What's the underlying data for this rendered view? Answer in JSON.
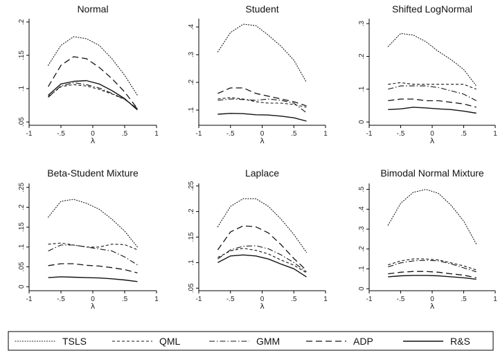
{
  "chart_data": {
    "type": "line",
    "x_label": "λ",
    "x_ticks": [
      "-1",
      "-.5",
      "0",
      ".5",
      "1"
    ],
    "x_tick_values": [
      -1,
      -0.5,
      0,
      0.5,
      1
    ],
    "x_range": [
      -1,
      1
    ],
    "grid": false,
    "legend": {
      "placement": "bottom",
      "entries": [
        {
          "name": "TSLS",
          "style": "dotted"
        },
        {
          "name": "QML",
          "style": "short-dash"
        },
        {
          "name": "GMM",
          "style": "dash-dot"
        },
        {
          "name": "ADP",
          "style": "long-dash"
        },
        {
          "name": "R&S",
          "style": "solid"
        }
      ]
    },
    "panels": [
      {
        "title": "Normal",
        "y_ticks": [
          ".05",
          ".1",
          ".15",
          ".2"
        ],
        "y_tick_values": [
          0.05,
          0.1,
          0.15,
          0.2
        ],
        "y_range": [
          0.045,
          0.205
        ],
        "x": [
          -0.7,
          -0.5,
          -0.3,
          -0.1,
          0.1,
          0.3,
          0.5,
          0.7
        ],
        "series": [
          {
            "name": "TSLS",
            "values": [
              0.135,
              0.165,
              0.178,
              0.175,
              0.165,
              0.145,
              0.12,
              0.09
            ]
          },
          {
            "name": "QML",
            "values": [
              0.088,
              0.103,
              0.106,
              0.104,
              0.099,
              0.092,
              0.084,
              0.07
            ]
          },
          {
            "name": "GMM",
            "values": [
              0.087,
              0.104,
              0.109,
              0.106,
              0.101,
              0.093,
              0.084,
              0.07
            ]
          },
          {
            "name": "ADP",
            "values": [
              0.103,
              0.135,
              0.148,
              0.145,
              0.132,
              0.115,
              0.095,
              0.07
            ]
          },
          {
            "name": "R&S",
            "values": [
              0.09,
              0.107,
              0.111,
              0.112,
              0.107,
              0.097,
              0.085,
              0.068
            ]
          }
        ]
      },
      {
        "title": "Student",
        "y_ticks": [
          ".1",
          ".2",
          ".3",
          ".4"
        ],
        "y_tick_values": [
          0.1,
          0.2,
          0.3,
          0.4
        ],
        "y_range": [
          0.045,
          0.43
        ],
        "x": [
          -0.7,
          -0.5,
          -0.3,
          -0.1,
          0.1,
          0.3,
          0.5,
          0.7
        ],
        "series": [
          {
            "name": "TSLS",
            "values": [
              0.31,
              0.38,
              0.41,
              0.405,
              0.37,
              0.33,
              0.28,
              0.2
            ]
          },
          {
            "name": "QML",
            "values": [
              0.14,
              0.145,
              0.14,
              0.13,
              0.125,
              0.125,
              0.12,
              0.11
            ]
          },
          {
            "name": "GMM",
            "values": [
              0.135,
              0.14,
              0.138,
              0.135,
              0.14,
              0.135,
              0.125,
              0.09
            ]
          },
          {
            "name": "ADP",
            "values": [
              0.16,
              0.18,
              0.18,
              0.16,
              0.15,
              0.14,
              0.13,
              0.115
            ]
          },
          {
            "name": "R&S",
            "values": [
              0.085,
              0.088,
              0.087,
              0.083,
              0.082,
              0.078,
              0.072,
              0.06
            ]
          }
        ]
      },
      {
        "title": "Shifted LogNormal",
        "y_ticks": [
          "0",
          ".1",
          ".2",
          ".3"
        ],
        "y_tick_values": [
          0,
          0.1,
          0.2,
          0.3
        ],
        "y_range": [
          -0.01,
          0.315
        ],
        "x": [
          -0.7,
          -0.5,
          -0.3,
          -0.1,
          0.1,
          0.3,
          0.5,
          0.7
        ],
        "series": [
          {
            "name": "TSLS",
            "values": [
              0.23,
              0.27,
              0.265,
              0.245,
              0.215,
              0.19,
              0.16,
              0.11
            ]
          },
          {
            "name": "QML",
            "values": [
              0.115,
              0.12,
              0.115,
              0.115,
              0.115,
              0.115,
              0.115,
              0.1
            ]
          },
          {
            "name": "GMM",
            "values": [
              0.1,
              0.11,
              0.11,
              0.11,
              0.105,
              0.095,
              0.085,
              0.065
            ]
          },
          {
            "name": "ADP",
            "values": [
              0.065,
              0.07,
              0.07,
              0.065,
              0.065,
              0.06,
              0.055,
              0.045
            ]
          },
          {
            "name": "R&S",
            "values": [
              0.038,
              0.04,
              0.045,
              0.043,
              0.04,
              0.038,
              0.033,
              0.027
            ]
          }
        ]
      },
      {
        "title": "Beta-Student Mixture",
        "y_ticks": [
          "0",
          ".05",
          ".1",
          ".15",
          ".2",
          ".25"
        ],
        "y_tick_values": [
          0,
          0.05,
          0.1,
          0.15,
          0.2,
          0.25
        ],
        "y_range": [
          -0.01,
          0.26
        ],
        "x": [
          -0.7,
          -0.5,
          -0.3,
          -0.1,
          0.1,
          0.3,
          0.5,
          0.7
        ],
        "series": [
          {
            "name": "TSLS",
            "values": [
              0.175,
              0.215,
              0.22,
              0.21,
              0.195,
              0.17,
              0.14,
              0.1
            ]
          },
          {
            "name": "QML",
            "values": [
              0.107,
              0.11,
              0.105,
              0.1,
              0.1,
              0.107,
              0.106,
              0.093
            ]
          },
          {
            "name": "GMM",
            "values": [
              0.09,
              0.105,
              0.105,
              0.1,
              0.095,
              0.09,
              0.075,
              0.055
            ]
          },
          {
            "name": "ADP",
            "values": [
              0.053,
              0.058,
              0.058,
              0.054,
              0.052,
              0.048,
              0.043,
              0.035
            ]
          },
          {
            "name": "R&S",
            "values": [
              0.023,
              0.025,
              0.024,
              0.023,
              0.022,
              0.02,
              0.017,
              0.013
            ]
          }
        ]
      },
      {
        "title": "Laplace",
        "y_ticks": [
          ".05",
          ".1",
          ".15",
          ".2",
          ".25"
        ],
        "y_tick_values": [
          0.05,
          0.1,
          0.15,
          0.2,
          0.25
        ],
        "y_range": [
          0.045,
          0.255
        ],
        "x": [
          -0.7,
          -0.5,
          -0.3,
          -0.1,
          0.1,
          0.3,
          0.5,
          0.7
        ],
        "series": [
          {
            "name": "TSLS",
            "values": [
              0.17,
              0.21,
              0.225,
              0.225,
              0.21,
              0.185,
              0.155,
              0.12
            ]
          },
          {
            "name": "QML",
            "values": [
              0.11,
              0.123,
              0.128,
              0.124,
              0.117,
              0.105,
              0.095,
              0.08
            ]
          },
          {
            "name": "GMM",
            "values": [
              0.107,
              0.125,
              0.132,
              0.133,
              0.127,
              0.115,
              0.1,
              0.082
            ]
          },
          {
            "name": "ADP",
            "values": [
              0.125,
              0.16,
              0.172,
              0.17,
              0.158,
              0.135,
              0.108,
              0.085
            ]
          },
          {
            "name": "R&S",
            "values": [
              0.1,
              0.113,
              0.115,
              0.113,
              0.107,
              0.097,
              0.088,
              0.072
            ]
          }
        ]
      },
      {
        "title": "Bimodal Normal Mixture",
        "y_ticks": [
          "0",
          ".1",
          ".2",
          ".3",
          ".4",
          ".5"
        ],
        "y_tick_values": [
          0,
          0.1,
          0.2,
          0.3,
          0.4,
          0.5
        ],
        "y_range": [
          -0.01,
          0.53
        ],
        "x": [
          -0.7,
          -0.5,
          -0.3,
          -0.1,
          0.1,
          0.3,
          0.5,
          0.7
        ],
        "series": [
          {
            "name": "TSLS",
            "values": [
              0.32,
              0.43,
              0.485,
              0.5,
              0.48,
              0.42,
              0.34,
              0.225
            ]
          },
          {
            "name": "QML",
            "values": [
              0.12,
              0.14,
              0.15,
              0.15,
              0.145,
              0.13,
              0.115,
              0.095
            ]
          },
          {
            "name": "GMM",
            "values": [
              0.11,
              0.13,
              0.14,
              0.143,
              0.14,
              0.125,
              0.105,
              0.085
            ]
          },
          {
            "name": "ADP",
            "values": [
              0.075,
              0.083,
              0.087,
              0.087,
              0.083,
              0.075,
              0.068,
              0.055
            ]
          },
          {
            "name": "R&S",
            "values": [
              0.06,
              0.065,
              0.067,
              0.067,
              0.065,
              0.06,
              0.055,
              0.048
            ]
          }
        ]
      }
    ]
  }
}
